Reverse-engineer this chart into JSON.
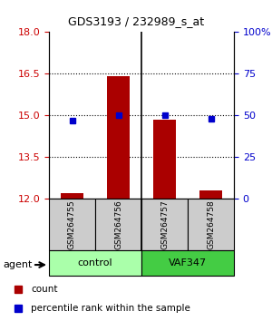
{
  "title": "GDS3193 / 232989_s_at",
  "samples": [
    "GSM264755",
    "GSM264756",
    "GSM264757",
    "GSM264758"
  ],
  "bar_values": [
    12.2,
    16.4,
    14.85,
    12.3
  ],
  "percentile_values": [
    47,
    50,
    50,
    48
  ],
  "bar_color": "#aa0000",
  "dot_color": "#0000cc",
  "ylim_left": [
    12,
    18
  ],
  "ylim_right": [
    0,
    100
  ],
  "yticks_left": [
    12,
    13.5,
    15,
    16.5,
    18
  ],
  "yticks_right": [
    0,
    25,
    50,
    75,
    100
  ],
  "ytick_labels_right": [
    "0",
    "25",
    "50",
    "75",
    "100%"
  ],
  "groups": [
    {
      "label": "control",
      "indices": [
        0,
        1
      ],
      "color": "#aaffaa"
    },
    {
      "label": "VAF347",
      "indices": [
        2,
        3
      ],
      "color": "#44cc44"
    }
  ],
  "group_label_prefix": "agent",
  "legend_count_label": "count",
  "legend_pct_label": "percentile rank within the sample",
  "bar_width": 0.5,
  "dot_ybase": 12,
  "background_color": "#ffffff",
  "plot_bg_color": "#ffffff",
  "grid_color": "#000000",
  "sample_box_color": "#cccccc"
}
